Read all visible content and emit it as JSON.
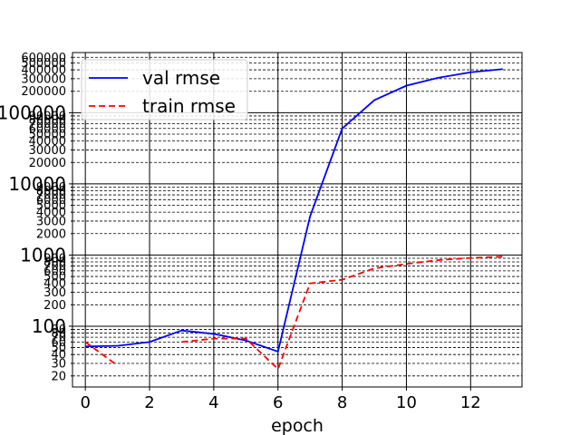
{
  "chart_data": {
    "type": "line",
    "xlabel": "epoch",
    "ylabel": "",
    "title": "",
    "xlim": [
      -0.4,
      13.6
    ],
    "ylim": [
      14,
      700000
    ],
    "yscale": "log",
    "xticks": [
      0,
      2,
      4,
      6,
      8,
      10,
      12
    ],
    "yticks_major": [
      {
        "value": 100,
        "label": "100"
      },
      {
        "value": 1000,
        "label": "1000"
      },
      {
        "value": 10000,
        "label": "10000"
      },
      {
        "value": 100000,
        "label": "100000"
      }
    ],
    "yticks_minor": [
      {
        "value": 20,
        "label": "20"
      },
      {
        "value": 30,
        "label": "30"
      },
      {
        "value": 40,
        "label": "40"
      },
      {
        "value": 50,
        "label": "50"
      },
      {
        "value": 60,
        "label": "60"
      },
      {
        "value": 70,
        "label": "70"
      },
      {
        "value": 80,
        "label": "80"
      },
      {
        "value": 90,
        "label": "90"
      },
      {
        "value": 200,
        "label": "200"
      },
      {
        "value": 300,
        "label": "300"
      },
      {
        "value": 400,
        "label": "400"
      },
      {
        "value": 500,
        "label": "500"
      },
      {
        "value": 600,
        "label": "600"
      },
      {
        "value": 700,
        "label": "700"
      },
      {
        "value": 800,
        "label": "800"
      },
      {
        "value": 900,
        "label": "900"
      },
      {
        "value": 2000,
        "label": "2000"
      },
      {
        "value": 3000,
        "label": "3000"
      },
      {
        "value": 4000,
        "label": "4000"
      },
      {
        "value": 5000,
        "label": "5000"
      },
      {
        "value": 6000,
        "label": "6000"
      },
      {
        "value": 7000,
        "label": "7000"
      },
      {
        "value": 8000,
        "label": "8000"
      },
      {
        "value": 9000,
        "label": "9000"
      },
      {
        "value": 20000,
        "label": "20000"
      },
      {
        "value": 30000,
        "label": "30000"
      },
      {
        "value": 40000,
        "label": "40000"
      },
      {
        "value": 50000,
        "label": "50000"
      },
      {
        "value": 60000,
        "label": "60000"
      },
      {
        "value": 70000,
        "label": "70000"
      },
      {
        "value": 80000,
        "label": "80000"
      },
      {
        "value": 90000,
        "label": "90000"
      },
      {
        "value": 200000,
        "label": "200000"
      },
      {
        "value": 300000,
        "label": "300000"
      },
      {
        "value": 400000,
        "label": "400000"
      },
      {
        "value": 500000,
        "label": "500000"
      },
      {
        "value": 600000,
        "label": "600000"
      }
    ],
    "grid": true,
    "legend_position": "top-left",
    "series": [
      {
        "name": "val rmse",
        "color": "#0000ff",
        "style": "solid",
        "x": [
          0,
          1,
          2,
          3,
          4,
          5,
          6,
          7,
          8,
          9,
          10,
          11,
          12,
          13
        ],
        "y": [
          52,
          53,
          60,
          87,
          78,
          63,
          44,
          3500,
          60000,
          150000,
          240000,
          310000,
          370000,
          410000
        ]
      },
      {
        "name": "train rmse",
        "color": "#ff0000",
        "style": "dashed",
        "segments": [
          {
            "x": [
              0,
              1
            ],
            "y": [
              60,
              28
            ]
          },
          {
            "x": [
              3,
              4,
              5,
              6,
              7,
              8,
              9,
              10,
              11,
              12,
              13
            ],
            "y": [
              60,
              67,
              67,
              25,
              400,
              450,
              650,
              750,
              850,
              910,
              950
            ]
          }
        ]
      }
    ]
  }
}
